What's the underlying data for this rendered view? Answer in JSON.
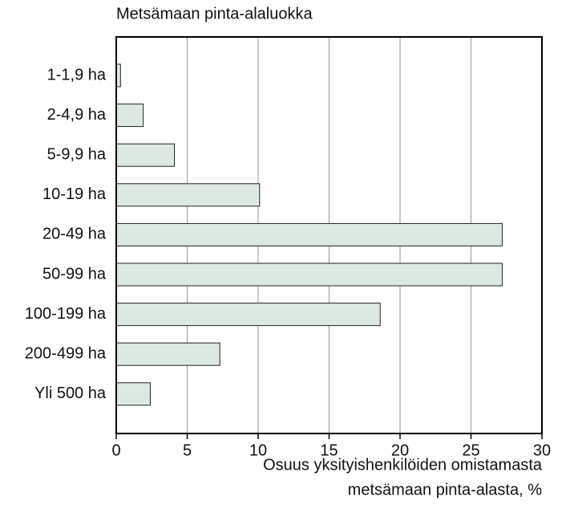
{
  "chart_data": {
    "type": "hbar",
    "title": "Metsämaan pinta-alaluokka",
    "xlabel": [
      "Osuus yksityishenkilöiden omistamasta",
      "metsämaan pinta-alasta, %"
    ],
    "categories": [
      "1-1,9 ha",
      "2-4,9 ha",
      "5-9,9 ha",
      "10-19 ha",
      "20-49 ha",
      "50-99 ha",
      "100-199 ha",
      "200-499 ha",
      "Yli 500 ha"
    ],
    "values": [
      0.3,
      1.9,
      4.1,
      10.1,
      27.2,
      27.2,
      18.6,
      7.3,
      2.4
    ],
    "color": "#dde9e0",
    "xlim": [
      0,
      30
    ],
    "xticks": [
      0,
      5,
      10,
      15,
      20,
      25,
      30
    ],
    "grid": true
  }
}
